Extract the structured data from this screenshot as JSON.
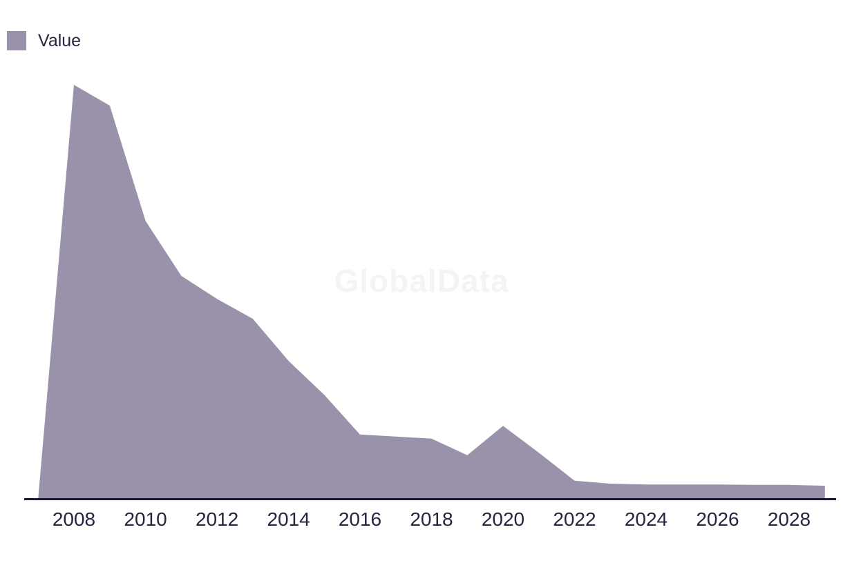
{
  "legend": {
    "items": [
      {
        "label": "Value",
        "color": "#9992aa"
      }
    ]
  },
  "watermark": "GlobalData",
  "colors": {
    "series": "#9992aa",
    "axis_line": "#191933",
    "tick_text": "#252540",
    "watermark": "#f4f4f6",
    "background": "#ffffff"
  },
  "chart_data": {
    "type": "area",
    "title": "",
    "xlabel": "",
    "ylabel": "",
    "legend_position": "top-left",
    "grid": false,
    "y_axis_visible": false,
    "series_name": "Value",
    "x": [
      2007,
      2008,
      2009,
      2010,
      2011,
      2012,
      2013,
      2014,
      2015,
      2016,
      2017,
      2018,
      2019,
      2020,
      2021,
      2022,
      2023,
      2024,
      2025,
      2026,
      2027,
      2028,
      2029
    ],
    "values": [
      0,
      100,
      95,
      67.1,
      53.8,
      48.2,
      43.4,
      33.2,
      25.0,
      15.4,
      14.9,
      14.4,
      10.4,
      17.5,
      11.0,
      4.2,
      3.5,
      3.3,
      3.3,
      3.3,
      3.2,
      3.2,
      3.0
    ],
    "x_tick_labels": [
      "2008",
      "2010",
      "2012",
      "2014",
      "2016",
      "2018",
      "2020",
      "2022",
      "2024",
      "2026",
      "2028"
    ],
    "xlim": [
      2007,
      2029
    ],
    "ylim": [
      0,
      100
    ]
  }
}
